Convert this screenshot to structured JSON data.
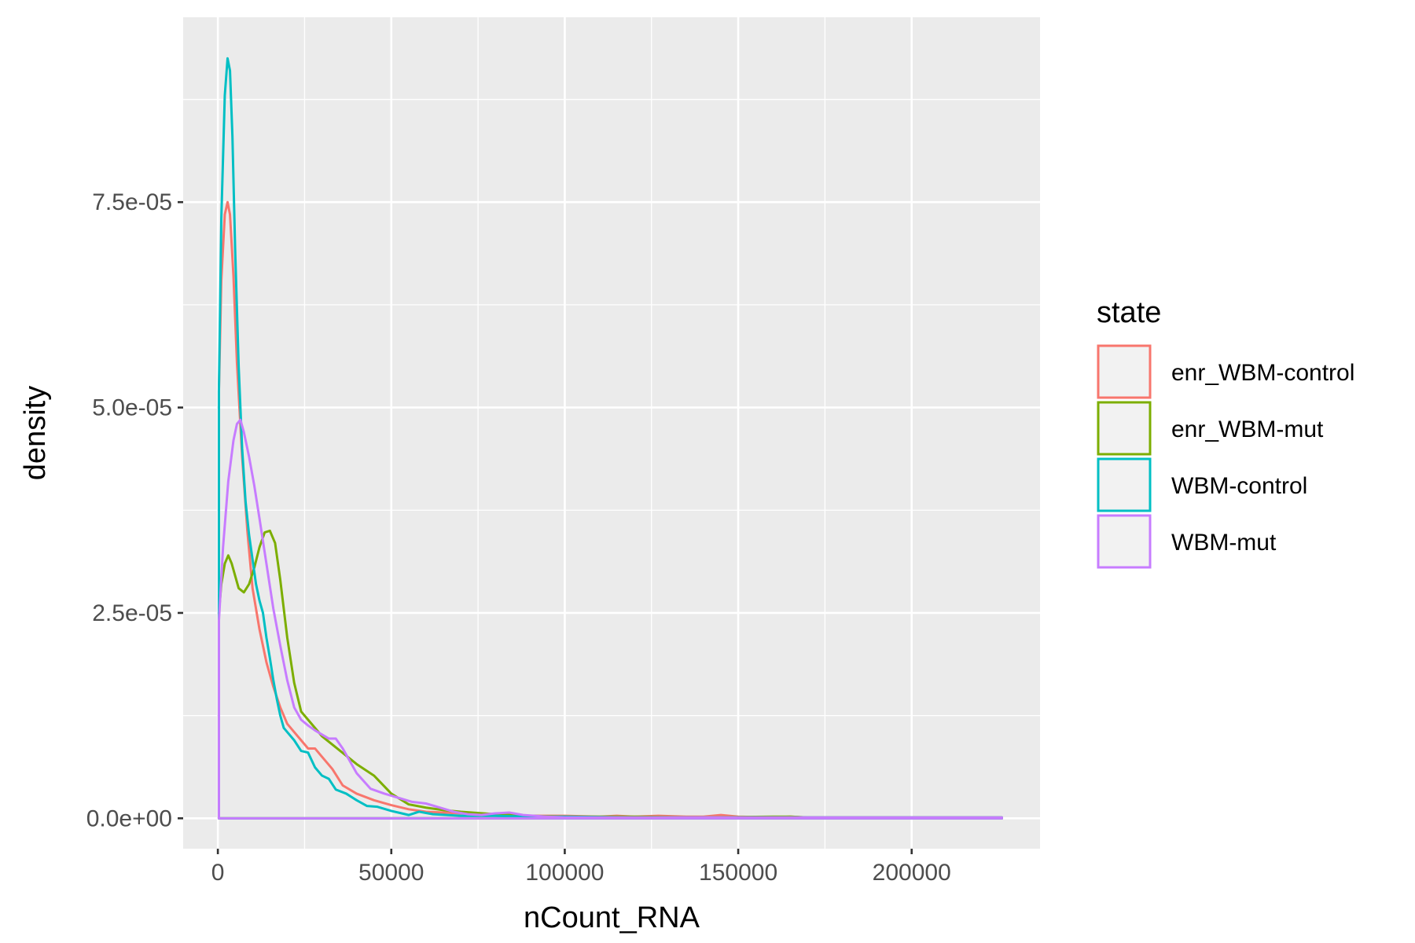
{
  "chart_data": {
    "type": "line",
    "kind": "density",
    "xlabel": "nCount_RNA",
    "ylabel": "density",
    "xlim": [
      -10000,
      237000
    ],
    "ylim": [
      -3.7e-06,
      9.75e-05
    ],
    "x_ticks": [
      {
        "value": 0,
        "label": "0"
      },
      {
        "value": 50000,
        "label": "50000"
      },
      {
        "value": 100000,
        "label": "100000"
      },
      {
        "value": 150000,
        "label": "150000"
      },
      {
        "value": 200000,
        "label": "200000"
      }
    ],
    "y_ticks": [
      {
        "value": 0,
        "label": "0.0e+00"
      },
      {
        "value": 2.5e-05,
        "label": "2.5e-05"
      },
      {
        "value": 5e-05,
        "label": "5.0e-05"
      },
      {
        "value": 7.5e-05,
        "label": "7.5e-05"
      }
    ],
    "grid": true,
    "legend": {
      "title": "state",
      "position": "right"
    },
    "series": [
      {
        "name": "enr_WBM-control",
        "color": "#F8766D",
        "x": [
          300,
          1000,
          2000,
          2800,
          3500,
          4500,
          5500,
          7000,
          8500,
          10000,
          12000,
          14000,
          16000,
          18000,
          20000,
          22000,
          24000,
          26000,
          28000,
          30000,
          33000,
          36000,
          40000,
          45000,
          50000,
          55000,
          60000,
          70000,
          80000,
          90000,
          100000,
          110000,
          115000,
          120000,
          127000,
          135000,
          140000,
          145000,
          150000,
          160000,
          165000,
          170000,
          180000,
          200000,
          220000,
          226000
        ],
        "y": [
          5.2e-05,
          6.55e-05,
          7.35e-05,
          7.5e-05,
          7.35e-05,
          6.6e-05,
          5.55e-05,
          4.4e-05,
          3.5e-05,
          2.8e-05,
          2.3e-05,
          1.9e-05,
          1.6e-05,
          1.35e-05,
          1.15e-05,
          1.05e-05,
          9.5e-06,
          8.5e-06,
          8.5e-06,
          7.5e-06,
          6e-06,
          4e-06,
          3e-06,
          2.2e-06,
          1.6e-06,
          1.1e-06,
          8e-07,
          6e-07,
          4e-07,
          3e-07,
          3e-07,
          2e-07,
          3e-07,
          2e-07,
          3e-07,
          2e-07,
          2e-07,
          4e-07,
          2e-07,
          1e-07,
          2e-07,
          1e-07,
          1e-07,
          1e-07,
          1e-07,
          1e-07
        ]
      },
      {
        "name": "enr_WBM-mut",
        "color": "#7CAE00",
        "x": [
          300,
          1000,
          2000,
          3000,
          4000,
          5000,
          6000,
          7500,
          9000,
          10500,
          12000,
          13500,
          15000,
          16500,
          18000,
          20000,
          22000,
          24000,
          26000,
          30000,
          35000,
          40000,
          45000,
          50000,
          55000,
          60000,
          65000,
          70000,
          80000,
          90000,
          100000,
          120000,
          140000,
          160000,
          165000,
          170000,
          200000,
          226000
        ],
        "y": [
          2.5e-05,
          2.85e-05,
          3.1e-05,
          3.2e-05,
          3.1e-05,
          2.95e-05,
          2.8e-05,
          2.75e-05,
          2.85e-05,
          3.05e-05,
          3.3e-05,
          3.48e-05,
          3.5e-05,
          3.35e-05,
          2.9e-05,
          2.2e-05,
          1.65e-05,
          1.3e-05,
          1.2e-05,
          1e-05,
          8.3e-06,
          6.6e-06,
          5.2e-06,
          3e-06,
          1.7e-06,
          1.3e-06,
          1e-06,
          8e-07,
          5e-07,
          3e-07,
          2e-07,
          2e-07,
          1e-07,
          2e-07,
          2e-07,
          1e-07,
          1e-07,
          1e-07
        ]
      },
      {
        "name": "WBM-control",
        "color": "#00BFC4",
        "x": [
          300,
          1000,
          2000,
          2800,
          3500,
          4200,
          5000,
          6000,
          7000,
          8000,
          9000,
          10000,
          11000,
          12000,
          13000,
          14000,
          15000,
          16000,
          17000,
          18000,
          19000,
          20000,
          22000,
          24000,
          26000,
          28000,
          30000,
          32000,
          34000,
          37000,
          40000,
          43000,
          46000,
          50000,
          55000,
          58000,
          62000,
          66000,
          70000,
          80000,
          90000,
          100000,
          120000,
          140000,
          160000,
          200000,
          226000
        ],
        "y": [
          5.2e-05,
          7.3e-05,
          8.8e-05,
          9.25e-05,
          9.1e-05,
          8.3e-05,
          6.9e-05,
          5.5e-05,
          4.5e-05,
          3.85e-05,
          3.45e-05,
          3.15e-05,
          2.85e-05,
          2.65e-05,
          2.5e-05,
          2.2e-05,
          1.95e-05,
          1.68e-05,
          1.45e-05,
          1.25e-05,
          1.1e-05,
          1.05e-05,
          9.5e-06,
          8.2e-06,
          8e-06,
          6.2e-06,
          5.2e-06,
          4.8e-06,
          3.5e-06,
          3e-06,
          2.2e-06,
          1.5e-06,
          1.4e-06,
          9e-07,
          4e-07,
          8e-07,
          5e-07,
          4e-07,
          3e-07,
          3e-07,
          2e-07,
          2e-07,
          1e-07,
          1e-07,
          1e-07,
          1e-07,
          1e-07
        ]
      },
      {
        "name": "WBM-mut",
        "color": "#C77CFF",
        "x": [
          300,
          1500,
          3000,
          4500,
          5500,
          6500,
          7500,
          9000,
          10500,
          12000,
          14000,
          16000,
          18000,
          20000,
          22000,
          24000,
          26000,
          28000,
          30000,
          32000,
          34000,
          36000,
          38000,
          40000,
          44000,
          48000,
          52000,
          56000,
          60000,
          64000,
          68000,
          72000,
          76000,
          80000,
          84000,
          88000,
          95000,
          100000,
          120000,
          150000,
          200000,
          226000
        ],
        "y": [
          2.4e-05,
          3.3e-05,
          4.1e-05,
          4.6e-05,
          4.8e-05,
          4.85e-05,
          4.7e-05,
          4.4e-05,
          4.05e-05,
          3.65e-05,
          3.1e-05,
          2.55e-05,
          2.1e-05,
          1.68e-05,
          1.35e-05,
          1.2e-05,
          1.13e-05,
          1.07e-05,
          1.02e-05,
          9.7e-06,
          9.7e-06,
          8.5e-06,
          7e-06,
          5.5e-06,
          3.6e-06,
          3e-06,
          2.5e-06,
          2e-06,
          1.8e-06,
          1.3e-06,
          8e-07,
          5e-07,
          4e-07,
          6e-07,
          7e-07,
          4e-07,
          2e-07,
          1e-07,
          1e-07,
          1e-07,
          1e-07,
          1e-07
        ]
      }
    ]
  }
}
